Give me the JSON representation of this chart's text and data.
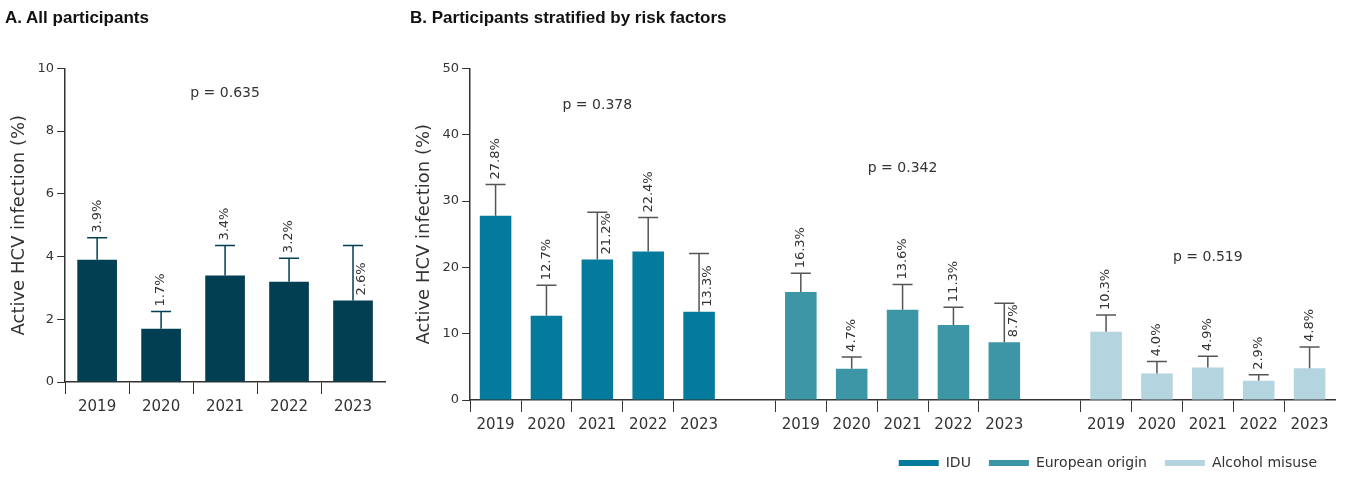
{
  "chart_data": [
    {
      "type": "bar",
      "title": "A. All participants",
      "ylabel": "Active HCV infection (%)",
      "categories": [
        "2019",
        "2020",
        "2021",
        "2022",
        "2023"
      ],
      "values": [
        3.9,
        1.7,
        3.4,
        3.2,
        2.6
      ],
      "color": "#023f52",
      "errors": [
        [
          3.9,
          4.6
        ],
        [
          1.7,
          2.25
        ],
        [
          3.4,
          4.35
        ],
        [
          3.2,
          3.95
        ],
        [
          2.6,
          4.35
        ]
      ],
      "value_labels": [
        "3.9%",
        "1.7%",
        "3.4%",
        "3.2%",
        "2.6%"
      ],
      "ylim": [
        0,
        10
      ],
      "yticks": [
        0,
        2,
        4,
        6,
        8,
        10
      ],
      "annotations": [
        "p = 0.635"
      ],
      "grid": false,
      "legend": false
    },
    {
      "type": "bar",
      "title": "B. Participants stratified by risk factors",
      "ylabel": "Active HCV infection (%)",
      "categories": [
        "2019",
        "2020",
        "2021",
        "2022",
        "2023",
        null,
        "2019",
        "2020",
        "2021",
        "2022",
        "2023",
        null,
        "2019",
        "2020",
        "2021",
        "2022",
        "2023"
      ],
      "series": [
        {
          "name": "IDU",
          "color": "#047b9d",
          "values": [
            27.8,
            12.7,
            21.2,
            22.4,
            13.3,
            null,
            null,
            null,
            null,
            null,
            null,
            null,
            null,
            null,
            null,
            null,
            null
          ],
          "errors": [
            [
              27.8,
              32.5
            ],
            [
              12.7,
              17.3
            ],
            [
              21.2,
              28.3
            ],
            [
              22.4,
              27.5
            ],
            [
              13.3,
              22.1
            ],
            null,
            null,
            null,
            null,
            null,
            null,
            null,
            null,
            null,
            null,
            null,
            null
          ],
          "value_labels": [
            "27.8%",
            "12.7%",
            "21.2%",
            "22.4%",
            "13.3%",
            null,
            null,
            null,
            null,
            null,
            null,
            null,
            null,
            null,
            null,
            null,
            null
          ]
        },
        {
          "name": "European origin",
          "color": "#3d96a6",
          "values": [
            null,
            null,
            null,
            null,
            null,
            null,
            16.3,
            4.7,
            13.6,
            11.3,
            8.7,
            null,
            null,
            null,
            null,
            null,
            null
          ],
          "errors": [
            null,
            null,
            null,
            null,
            null,
            null,
            [
              16.3,
              19.1
            ],
            [
              4.7,
              6.5
            ],
            [
              13.6,
              17.4
            ],
            [
              11.3,
              14.0
            ],
            [
              8.7,
              14.6
            ],
            null,
            null,
            null,
            null,
            null,
            null
          ],
          "value_labels": [
            null,
            null,
            null,
            null,
            null,
            null,
            "16.3%",
            "4.7%",
            "13.6%",
            "11.3%",
            "8.7%",
            null,
            null,
            null,
            null,
            null,
            null
          ]
        },
        {
          "name": "Alcohol misuse",
          "color": "#b4d4e0",
          "values": [
            null,
            null,
            null,
            null,
            null,
            null,
            null,
            null,
            null,
            null,
            null,
            null,
            10.3,
            4.0,
            4.9,
            2.9,
            4.8
          ],
          "errors": [
            null,
            null,
            null,
            null,
            null,
            null,
            null,
            null,
            null,
            null,
            null,
            null,
            [
              10.3,
              12.8
            ],
            [
              4.0,
              5.8
            ],
            [
              4.9,
              6.6
            ],
            [
              2.9,
              3.8
            ],
            [
              4.8,
              8.0
            ]
          ],
          "value_labels": [
            null,
            null,
            null,
            null,
            null,
            null,
            null,
            null,
            null,
            null,
            null,
            null,
            "10.3%",
            "4.0%",
            "4.9%",
            "2.9%",
            "4.8%"
          ]
        }
      ],
      "ylim": [
        0,
        50
      ],
      "yticks": [
        0,
        10,
        20,
        30,
        40,
        50
      ],
      "annotations": [
        "p = 0.378",
        "p = 0.342",
        "p = 0.519"
      ],
      "grid": false,
      "legend": "bottom"
    }
  ]
}
